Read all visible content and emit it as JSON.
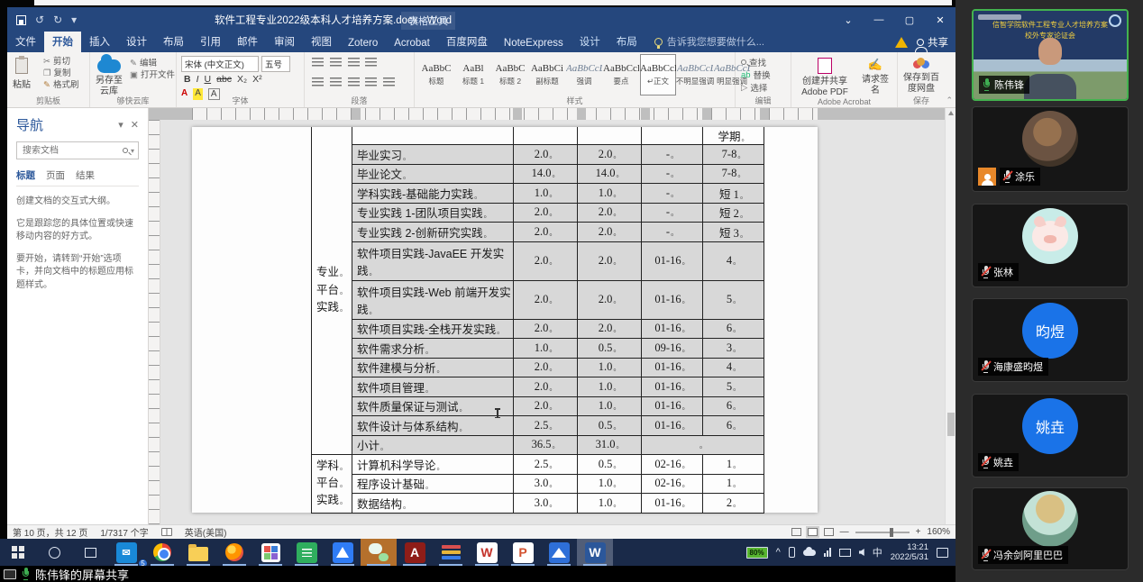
{
  "word": {
    "title": "软件工程专业2022级本科人才培养方案.docx - Word",
    "tools_header": "表格工具",
    "tabs": [
      {
        "label": "文件",
        "file": true
      },
      {
        "label": "开始",
        "selected": true
      },
      {
        "label": "插入"
      },
      {
        "label": "设计"
      },
      {
        "label": "布局"
      },
      {
        "label": "引用"
      },
      {
        "label": "邮件"
      },
      {
        "label": "审阅"
      },
      {
        "label": "视图"
      },
      {
        "label": "Zotero"
      },
      {
        "label": "Acrobat"
      },
      {
        "label": "百度网盘"
      },
      {
        "label": "NoteExpress"
      },
      {
        "label": "设计",
        "ctx": true
      },
      {
        "label": "布局",
        "ctx": true
      }
    ],
    "tell_me": "告诉我您想要做什么...",
    "share_label": "共享",
    "window_controls": {
      "minimize": "—",
      "restore": "▢",
      "close": "✕",
      "ribbon_options": "⌄"
    },
    "ribbon": {
      "clipboard": {
        "paste": "粘贴",
        "cut": "剪切",
        "copy": "复制",
        "painter": "格式刷",
        "label": "剪贴板"
      },
      "cloud": {
        "save_to": "另存至云库",
        "edit": "编辑",
        "open": "打开文件",
        "label": "够快云库"
      },
      "font": {
        "family": "宋体 (中文正文)",
        "size": "五号",
        "bold": "B",
        "italic": "I",
        "underline": "U",
        "strike": "abc",
        "sub": "X₂",
        "sup": "X²",
        "label": "字体"
      },
      "paragraph": {
        "label": "段落"
      },
      "styles": {
        "label": "样式",
        "items": [
          {
            "preview": "AaBbC",
            "label": "标题"
          },
          {
            "preview": "AaBl",
            "label": "标题 1"
          },
          {
            "preview": "AaBbC",
            "label": "标题 2"
          },
          {
            "preview": "AaBbCi",
            "label": "副标题"
          },
          {
            "preview": "AaBbCcDc",
            "label": "强调",
            "italic": true
          },
          {
            "preview": "AaBbCcD",
            "label": "要点"
          },
          {
            "preview": "AaBbCcDc",
            "label": "↵正文",
            "selected": true
          },
          {
            "preview": "AaBbCcDc",
            "label": "不明显强调",
            "italic": true
          },
          {
            "preview": "AaBbCcDc",
            "label": "明显强调",
            "italic": true
          }
        ]
      },
      "editing": {
        "find": "查找",
        "replace": "替换",
        "select": "选择",
        "label": "编辑"
      },
      "acrobat": {
        "create": "创建并共享 Adobe PDF",
        "sign": "请求签名",
        "label": "Adobe Acrobat"
      },
      "save_group": {
        "baidu": "保存到百度网盘",
        "label": "保存"
      }
    },
    "nav": {
      "title": "导航",
      "search_placeholder": "搜索文档",
      "tabs": [
        {
          "label": "标题",
          "selected": true
        },
        {
          "label": "页面"
        },
        {
          "label": "结果"
        }
      ],
      "p1": "创建文档的交互式大纲。",
      "p2": "它是跟踪您的具体位置或快速移动内容的好方式。",
      "p3": "要开始，请转到“开始”选项卡，并向文档中的标题应用标题样式。"
    },
    "status": {
      "page": "第 10 页，共 12 页",
      "words": "1/7317 个字",
      "lang": "英语(美国)",
      "zoom": "160%",
      "zoom_minus": "—",
      "zoom_plus": "+"
    }
  },
  "document": {
    "cell_mark": "。",
    "table": {
      "header_partial_semester": "学期",
      "group1": {
        "lines": [
          "专业",
          "平台",
          "实践"
        ]
      },
      "group2": {
        "lines": [
          "学科",
          "平台",
          "实践"
        ]
      },
      "rows": [
        {
          "name": "毕业实习",
          "c1": "2.0",
          "c2": "2.0",
          "weeks": "-",
          "sem": "7-8",
          "shade": true
        },
        {
          "name": "毕业论文",
          "c1": "14.0",
          "c2": "14.0",
          "weeks": "-",
          "sem": "7-8",
          "shade": true
        },
        {
          "name": "学科实践-基础能力实践",
          "c1": "1.0",
          "c2": "1.0",
          "weeks": "-",
          "sem": "短 1",
          "shade": true
        },
        {
          "name": "专业实践 1-团队项目实践",
          "c1": "2.0",
          "c2": "2.0",
          "weeks": "-",
          "sem": "短 2",
          "shade": true
        },
        {
          "name": "专业实践 2-创新研究实践",
          "c1": "2.0",
          "c2": "2.0",
          "weeks": "-",
          "sem": "短 3",
          "shade": true
        },
        {
          "name": "软件项目实践-JavaEE 开发实践",
          "c1": "2.0",
          "c2": "2.0",
          "weeks": "01-16",
          "sem": "4",
          "shade": true,
          "tall": true
        },
        {
          "name": "软件项目实践-Web 前端开发实践",
          "c1": "2.0",
          "c2": "2.0",
          "weeks": "01-16",
          "sem": "5",
          "shade": true,
          "tall": true
        },
        {
          "name": "软件项目实践-全栈开发实践",
          "c1": "2.0",
          "c2": "2.0",
          "weeks": "01-16",
          "sem": "6",
          "shade": true
        },
        {
          "name": "软件需求分析",
          "c1": "1.0",
          "c2": "0.5",
          "weeks": "09-16",
          "sem": "3",
          "shade": true
        },
        {
          "name": "软件建模与分析",
          "c1": "2.0",
          "c2": "1.0",
          "weeks": "01-16",
          "sem": "4",
          "shade": true
        },
        {
          "name": "软件项目管理",
          "c1": "2.0",
          "c2": "1.0",
          "weeks": "01-16",
          "sem": "5",
          "shade": true
        },
        {
          "name": "软件质量保证与测试",
          "c1": "2.0",
          "c2": "1.0",
          "weeks": "01-16",
          "sem": "6",
          "shade": true
        },
        {
          "name": "软件设计与体系结构",
          "c1": "2.5",
          "c2": "0.5",
          "weeks": "01-16",
          "sem": "6",
          "shade": true
        },
        {
          "name": "小计",
          "c1": "36.5",
          "c2": "31.0",
          "shade": true,
          "subtotal": true
        },
        {
          "name": "计算机科学导论",
          "c1": "2.5",
          "c2": "0.5",
          "weeks": "02-16",
          "sem": "1"
        },
        {
          "name": "程序设计基础",
          "c1": "3.0",
          "c2": "1.0",
          "weeks": "02-16",
          "sem": "1"
        },
        {
          "name": "数据结构",
          "c1": "3.0",
          "c2": "1.0",
          "weeks": "01-16",
          "sem": "2"
        }
      ]
    }
  },
  "taskbar": {
    "apps": [
      {
        "id": "mail",
        "bg": "#1989d8",
        "badge": "5"
      },
      {
        "id": "chrome"
      },
      {
        "id": "explorer"
      },
      {
        "id": "firefox"
      },
      {
        "id": "docs-grid"
      },
      {
        "id": "notes-green",
        "bg": "#2fae5e"
      },
      {
        "id": "pan-blue",
        "bg": "#2f7cf6"
      },
      {
        "id": "wechat",
        "slot": "#b5702c"
      },
      {
        "id": "acrobat",
        "bg": "#8f1d18",
        "letter": "A",
        "letter_color": "#ffffff"
      },
      {
        "id": "winrar"
      },
      {
        "id": "wps",
        "bg": "#ffffff",
        "letter": "W",
        "letter_color": "#c4322a"
      },
      {
        "id": "ppt",
        "bg": "#ffffff",
        "letter": "P",
        "letter_color": "#d35230"
      },
      {
        "id": "lake",
        "bg": "#2e6fd8"
      },
      {
        "id": "word",
        "bg": "#2b579a",
        "letter": "W",
        "letter_color": "#ffffff",
        "slot": "#515e78",
        "active": true
      }
    ],
    "tray": {
      "battery": "80%",
      "chevron": "^",
      "ime": "中",
      "time": "13:21",
      "date": "2022/5/31"
    }
  },
  "share_bar": {
    "label": "陈伟锋的屏幕共享"
  },
  "meeting": {
    "participants": [
      {
        "name": "陈伟锋",
        "mic": "on",
        "type": "video",
        "speaking": true,
        "banner_line1": "信智学院软件工程专业人才培养方案",
        "banner_line2": "校外专家论证会"
      },
      {
        "name": "涂乐",
        "mic": "muted",
        "type": "photo",
        "host": true
      },
      {
        "name": "张林",
        "mic": "muted",
        "type": "pig"
      },
      {
        "name": "海康盛昀煜",
        "mic": "muted",
        "type": "text",
        "avatar_text": "昀煜",
        "avatar_color": "#1a73e8"
      },
      {
        "name": "姚垚",
        "mic": "muted",
        "type": "text",
        "avatar_text": "姚垚",
        "avatar_color": "#1a73e8"
      },
      {
        "name": "冯余剑阿里巴巴",
        "mic": "muted",
        "type": "anime"
      }
    ]
  }
}
